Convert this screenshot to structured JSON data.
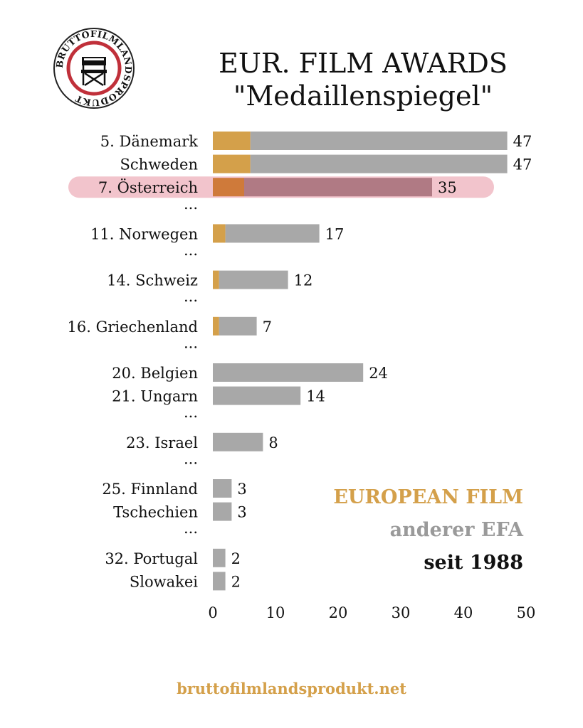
{
  "header": {
    "title_line1": "EUR. FILM AWARDS",
    "title_line2": "\"Medaillenspiegel\"",
    "logo_text": "BRUTTOFILMLANDSPRODUKT"
  },
  "legend": {
    "european_film": "EUROPEAN FILM",
    "other_efa": "anderer EFA",
    "since": "seit 1988"
  },
  "footer": {
    "url": "bruttofilmlandsprodukt.net"
  },
  "colors": {
    "european_film": "#d4a04a",
    "other": "#a8a8a8",
    "highlight_band": "#f2c4cc",
    "highlight_other": "#b07a84",
    "highlight_european": "#cf7a3a",
    "logo_ring": "#c0303a"
  },
  "chart_data": {
    "type": "bar",
    "orientation": "horizontal",
    "stacked": true,
    "title": "EUR. FILM AWARDS \"Medaillenspiegel\"",
    "xlim": [
      0,
      50
    ],
    "xticks": [
      0,
      10,
      20,
      30,
      40,
      50
    ],
    "highlight": "7. Österreich",
    "series": [
      {
        "name": "EUROPEAN FILM",
        "values": [
          6,
          6,
          5,
          2,
          1,
          1,
          0,
          0,
          0,
          0,
          0,
          0,
          0
        ]
      },
      {
        "name": "anderer EFA",
        "values": [
          41,
          41,
          30,
          15,
          11,
          6,
          24,
          14,
          8,
          3,
          3,
          2,
          2
        ]
      }
    ],
    "totals": [
      47,
      47,
      35,
      17,
      12,
      7,
      24,
      14,
      8,
      3,
      3,
      2,
      2
    ],
    "rows": [
      {
        "label": "5. Dänemark",
        "total": 47,
        "ef": 6
      },
      {
        "label": "Schweden",
        "total": 47,
        "ef": 6
      },
      {
        "label": "7. Österreich",
        "total": 35,
        "ef": 5
      },
      {
        "label": "...",
        "gap": true
      },
      {
        "label": "11. Norwegen",
        "total": 17,
        "ef": 2
      },
      {
        "label": "...",
        "gap": true
      },
      {
        "label": "14. Schweiz",
        "total": 12,
        "ef": 1
      },
      {
        "label": "...",
        "gap": true
      },
      {
        "label": "16. Griechenland",
        "total": 7,
        "ef": 1
      },
      {
        "label": "...",
        "gap": true
      },
      {
        "label": "20. Belgien",
        "total": 24,
        "ef": 0
      },
      {
        "label": "21. Ungarn",
        "total": 14,
        "ef": 0
      },
      {
        "label": "...",
        "gap": true
      },
      {
        "label": "23. Israel",
        "total": 8,
        "ef": 0
      },
      {
        "label": "...",
        "gap": true
      },
      {
        "label": "25. Finnland",
        "total": 3,
        "ef": 0
      },
      {
        "label": "Tschechien",
        "total": 3,
        "ef": 0
      },
      {
        "label": "...",
        "gap": true
      },
      {
        "label": "32. Portugal",
        "total": 2,
        "ef": 0
      },
      {
        "label": "Slowakei",
        "total": 2,
        "ef": 0
      }
    ]
  }
}
